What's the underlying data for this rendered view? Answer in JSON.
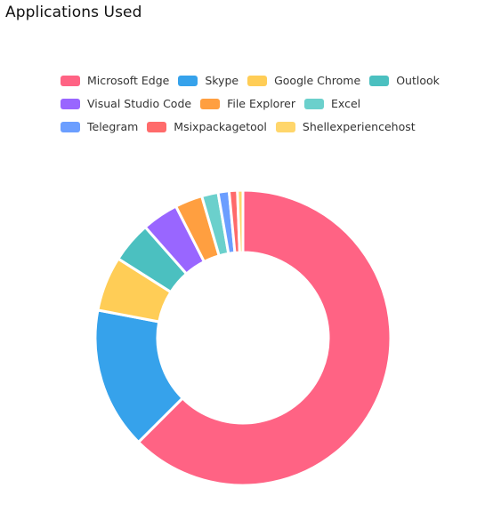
{
  "page": {
    "title": "Applications Used"
  },
  "chart_data": {
    "type": "pie",
    "variant": "doughnut",
    "title": "Applications Used",
    "legend_position": "top",
    "labels": [
      "Microsoft Edge",
      "Skype",
      "Google Chrome",
      "Outlook",
      "Visual Studio Code",
      "File Explorer",
      "Excel",
      "Telegram",
      "Msixpackagetool",
      "Shellexperiencehost"
    ],
    "values": [
      62.5,
      15.5,
      6.0,
      4.5,
      4.0,
      3.0,
      1.8,
      1.2,
      0.9,
      0.6
    ],
    "colors": [
      "#ff6384",
      "#36a2eb",
      "#ffcd56",
      "#4bc0c0",
      "#9966ff",
      "#ff9f40",
      "#6bd0cc",
      "#6b9eff",
      "#ff6b6b",
      "#ffd66b"
    ]
  }
}
